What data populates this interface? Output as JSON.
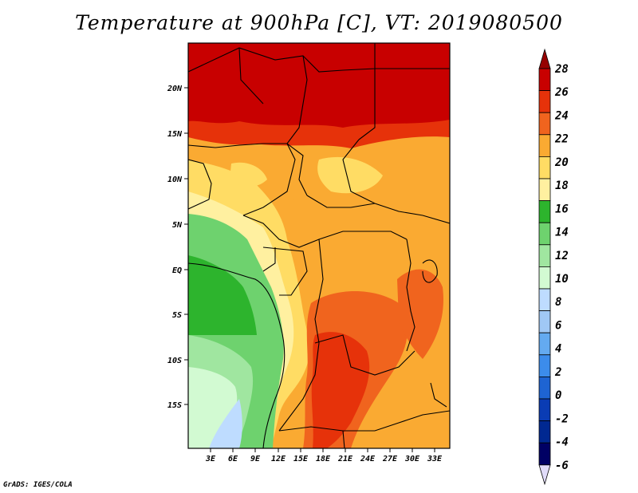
{
  "title": "Temperature at 900hPa [C], VT: 2019080500",
  "credit": "GrADS: IGES/COLA",
  "map": {
    "lat_labels": [
      "20N",
      "15N",
      "10N",
      "5N",
      "EQ",
      "5S",
      "10S",
      "15S"
    ],
    "lon_labels": [
      "3E",
      "6E",
      "9E",
      "12E",
      "15E",
      "18E",
      "21E",
      "24E",
      "27E",
      "30E",
      "33E"
    ]
  },
  "colorbar": {
    "levels": [
      "28",
      "26",
      "24",
      "22",
      "20",
      "18",
      "16",
      "14",
      "12",
      "10",
      "8",
      "6",
      "4",
      "2",
      "0",
      "-2",
      "-4",
      "-6"
    ],
    "colors": [
      "#960000",
      "#c80000",
      "#e6320a",
      "#f0641e",
      "#faaa32",
      "#ffdc64",
      "#fff0a0",
      "#2db42d",
      "#6ed26e",
      "#a0e6a0",
      "#d2fad2",
      "#bedcff",
      "#a0c8f5",
      "#64aaf0",
      "#3c8ceb",
      "#1e64d2",
      "#0a3cb4",
      "#002891",
      "#000064",
      "#e1dcfa"
    ]
  }
}
